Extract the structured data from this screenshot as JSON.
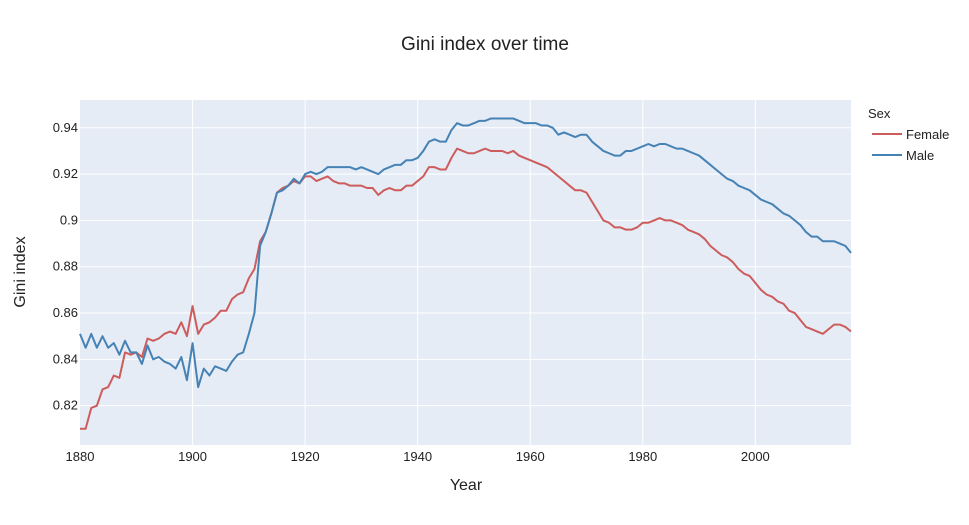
{
  "chart_data": {
    "type": "line",
    "title": "Gini index over time",
    "xlabel": "Year",
    "ylabel": "Gini index",
    "xlim": [
      1880,
      2017
    ],
    "ylim": [
      0.803,
      0.952
    ],
    "x_ticks": [
      1880,
      1900,
      1920,
      1940,
      1960,
      1980,
      2000
    ],
    "y_ticks": [
      0.82,
      0.84,
      0.86,
      0.88,
      0.9,
      0.92,
      0.94
    ],
    "y_tick_labels": [
      "0.82",
      "0.84",
      "0.86",
      "0.88",
      "0.9",
      "0.92",
      "0.94"
    ],
    "grid": true,
    "legend": {
      "title": "Sex",
      "position": "right"
    },
    "series": [
      {
        "name": "Female",
        "color": "#cd5c5c",
        "points": [
          [
            1880,
            0.81
          ],
          [
            1881,
            0.81
          ],
          [
            1882,
            0.819
          ],
          [
            1883,
            0.82
          ],
          [
            1884,
            0.827
          ],
          [
            1885,
            0.828
          ],
          [
            1886,
            0.833
          ],
          [
            1887,
            0.832
          ],
          [
            1888,
            0.843
          ],
          [
            1889,
            0.842
          ],
          [
            1890,
            0.843
          ],
          [
            1891,
            0.841
          ],
          [
            1892,
            0.849
          ],
          [
            1893,
            0.848
          ],
          [
            1894,
            0.849
          ],
          [
            1895,
            0.851
          ],
          [
            1896,
            0.852
          ],
          [
            1897,
            0.851
          ],
          [
            1898,
            0.856
          ],
          [
            1899,
            0.85
          ],
          [
            1900,
            0.863
          ],
          [
            1901,
            0.851
          ],
          [
            1902,
            0.855
          ],
          [
            1903,
            0.856
          ],
          [
            1904,
            0.858
          ],
          [
            1905,
            0.861
          ],
          [
            1906,
            0.861
          ],
          [
            1907,
            0.866
          ],
          [
            1908,
            0.868
          ],
          [
            1909,
            0.869
          ],
          [
            1910,
            0.875
          ],
          [
            1911,
            0.879
          ],
          [
            1912,
            0.891
          ],
          [
            1913,
            0.895
          ],
          [
            1914,
            0.903
          ],
          [
            1915,
            0.912
          ],
          [
            1916,
            0.914
          ],
          [
            1917,
            0.915
          ],
          [
            1918,
            0.917
          ],
          [
            1919,
            0.916
          ],
          [
            1920,
            0.919
          ],
          [
            1921,
            0.919
          ],
          [
            1922,
            0.917
          ],
          [
            1923,
            0.918
          ],
          [
            1924,
            0.919
          ],
          [
            1925,
            0.917
          ],
          [
            1926,
            0.916
          ],
          [
            1927,
            0.916
          ],
          [
            1928,
            0.915
          ],
          [
            1929,
            0.915
          ],
          [
            1930,
            0.915
          ],
          [
            1931,
            0.914
          ],
          [
            1932,
            0.914
          ],
          [
            1933,
            0.911
          ],
          [
            1934,
            0.913
          ],
          [
            1935,
            0.914
          ],
          [
            1936,
            0.913
          ],
          [
            1937,
            0.913
          ],
          [
            1938,
            0.915
          ],
          [
            1939,
            0.915
          ],
          [
            1940,
            0.917
          ],
          [
            1941,
            0.919
          ],
          [
            1942,
            0.923
          ],
          [
            1943,
            0.923
          ],
          [
            1944,
            0.922
          ],
          [
            1945,
            0.922
          ],
          [
            1946,
            0.927
          ],
          [
            1947,
            0.931
          ],
          [
            1948,
            0.93
          ],
          [
            1949,
            0.929
          ],
          [
            1950,
            0.929
          ],
          [
            1951,
            0.93
          ],
          [
            1952,
            0.931
          ],
          [
            1953,
            0.93
          ],
          [
            1954,
            0.93
          ],
          [
            1955,
            0.93
          ],
          [
            1956,
            0.929
          ],
          [
            1957,
            0.93
          ],
          [
            1958,
            0.928
          ],
          [
            1959,
            0.927
          ],
          [
            1960,
            0.926
          ],
          [
            1961,
            0.925
          ],
          [
            1962,
            0.924
          ],
          [
            1963,
            0.923
          ],
          [
            1964,
            0.921
          ],
          [
            1965,
            0.919
          ],
          [
            1966,
            0.917
          ],
          [
            1967,
            0.915
          ],
          [
            1968,
            0.913
          ],
          [
            1969,
            0.913
          ],
          [
            1970,
            0.912
          ],
          [
            1971,
            0.908
          ],
          [
            1972,
            0.904
          ],
          [
            1973,
            0.9
          ],
          [
            1974,
            0.899
          ],
          [
            1975,
            0.897
          ],
          [
            1976,
            0.897
          ],
          [
            1977,
            0.896
          ],
          [
            1978,
            0.896
          ],
          [
            1979,
            0.897
          ],
          [
            1980,
            0.899
          ],
          [
            1981,
            0.899
          ],
          [
            1982,
            0.9
          ],
          [
            1983,
            0.901
          ],
          [
            1984,
            0.9
          ],
          [
            1985,
            0.9
          ],
          [
            1986,
            0.899
          ],
          [
            1987,
            0.898
          ],
          [
            1988,
            0.896
          ],
          [
            1989,
            0.895
          ],
          [
            1990,
            0.894
          ],
          [
            1991,
            0.892
          ],
          [
            1992,
            0.889
          ],
          [
            1993,
            0.887
          ],
          [
            1994,
            0.885
          ],
          [
            1995,
            0.884
          ],
          [
            1996,
            0.882
          ],
          [
            1997,
            0.879
          ],
          [
            1998,
            0.877
          ],
          [
            1999,
            0.876
          ],
          [
            2000,
            0.873
          ],
          [
            2001,
            0.87
          ],
          [
            2002,
            0.868
          ],
          [
            2003,
            0.867
          ],
          [
            2004,
            0.865
          ],
          [
            2005,
            0.864
          ],
          [
            2006,
            0.861
          ],
          [
            2007,
            0.86
          ],
          [
            2008,
            0.857
          ],
          [
            2009,
            0.854
          ],
          [
            2010,
            0.853
          ],
          [
            2011,
            0.852
          ],
          [
            2012,
            0.851
          ],
          [
            2013,
            0.853
          ],
          [
            2014,
            0.855
          ],
          [
            2015,
            0.855
          ],
          [
            2016,
            0.854
          ],
          [
            2017,
            0.852
          ]
        ]
      },
      {
        "name": "Male",
        "color": "#4682b4",
        "points": [
          [
            1880,
            0.851
          ],
          [
            1881,
            0.845
          ],
          [
            1882,
            0.851
          ],
          [
            1883,
            0.845
          ],
          [
            1884,
            0.85
          ],
          [
            1885,
            0.845
          ],
          [
            1886,
            0.847
          ],
          [
            1887,
            0.842
          ],
          [
            1888,
            0.848
          ],
          [
            1889,
            0.843
          ],
          [
            1890,
            0.843
          ],
          [
            1891,
            0.838
          ],
          [
            1892,
            0.846
          ],
          [
            1893,
            0.84
          ],
          [
            1894,
            0.841
          ],
          [
            1895,
            0.839
          ],
          [
            1896,
            0.838
          ],
          [
            1897,
            0.836
          ],
          [
            1898,
            0.841
          ],
          [
            1899,
            0.831
          ],
          [
            1900,
            0.847
          ],
          [
            1901,
            0.828
          ],
          [
            1902,
            0.836
          ],
          [
            1903,
            0.833
          ],
          [
            1904,
            0.837
          ],
          [
            1905,
            0.836
          ],
          [
            1906,
            0.835
          ],
          [
            1907,
            0.839
          ],
          [
            1908,
            0.842
          ],
          [
            1909,
            0.843
          ],
          [
            1910,
            0.851
          ],
          [
            1911,
            0.86
          ],
          [
            1912,
            0.889
          ],
          [
            1913,
            0.895
          ],
          [
            1914,
            0.903
          ],
          [
            1915,
            0.912
          ],
          [
            1916,
            0.913
          ],
          [
            1917,
            0.915
          ],
          [
            1918,
            0.918
          ],
          [
            1919,
            0.916
          ],
          [
            1920,
            0.92
          ],
          [
            1921,
            0.921
          ],
          [
            1922,
            0.92
          ],
          [
            1923,
            0.921
          ],
          [
            1924,
            0.923
          ],
          [
            1925,
            0.923
          ],
          [
            1926,
            0.923
          ],
          [
            1927,
            0.923
          ],
          [
            1928,
            0.923
          ],
          [
            1929,
            0.922
          ],
          [
            1930,
            0.923
          ],
          [
            1931,
            0.922
          ],
          [
            1932,
            0.921
          ],
          [
            1933,
            0.92
          ],
          [
            1934,
            0.922
          ],
          [
            1935,
            0.923
          ],
          [
            1936,
            0.924
          ],
          [
            1937,
            0.924
          ],
          [
            1938,
            0.926
          ],
          [
            1939,
            0.926
          ],
          [
            1940,
            0.927
          ],
          [
            1941,
            0.93
          ],
          [
            1942,
            0.934
          ],
          [
            1943,
            0.935
          ],
          [
            1944,
            0.934
          ],
          [
            1945,
            0.934
          ],
          [
            1946,
            0.939
          ],
          [
            1947,
            0.942
          ],
          [
            1948,
            0.941
          ],
          [
            1949,
            0.941
          ],
          [
            1950,
            0.942
          ],
          [
            1951,
            0.943
          ],
          [
            1952,
            0.943
          ],
          [
            1953,
            0.944
          ],
          [
            1954,
            0.944
          ],
          [
            1955,
            0.944
          ],
          [
            1956,
            0.944
          ],
          [
            1957,
            0.944
          ],
          [
            1958,
            0.943
          ],
          [
            1959,
            0.942
          ],
          [
            1960,
            0.942
          ],
          [
            1961,
            0.942
          ],
          [
            1962,
            0.941
          ],
          [
            1963,
            0.941
          ],
          [
            1964,
            0.94
          ],
          [
            1965,
            0.937
          ],
          [
            1966,
            0.938
          ],
          [
            1967,
            0.937
          ],
          [
            1968,
            0.936
          ],
          [
            1969,
            0.937
          ],
          [
            1970,
            0.937
          ],
          [
            1971,
            0.934
          ],
          [
            1972,
            0.932
          ],
          [
            1973,
            0.93
          ],
          [
            1974,
            0.929
          ],
          [
            1975,
            0.928
          ],
          [
            1976,
            0.928
          ],
          [
            1977,
            0.93
          ],
          [
            1978,
            0.93
          ],
          [
            1979,
            0.931
          ],
          [
            1980,
            0.932
          ],
          [
            1981,
            0.933
          ],
          [
            1982,
            0.932
          ],
          [
            1983,
            0.933
          ],
          [
            1984,
            0.933
          ],
          [
            1985,
            0.932
          ],
          [
            1986,
            0.931
          ],
          [
            1987,
            0.931
          ],
          [
            1988,
            0.93
          ],
          [
            1989,
            0.929
          ],
          [
            1990,
            0.928
          ],
          [
            1991,
            0.926
          ],
          [
            1992,
            0.924
          ],
          [
            1993,
            0.922
          ],
          [
            1994,
            0.92
          ],
          [
            1995,
            0.918
          ],
          [
            1996,
            0.917
          ],
          [
            1997,
            0.915
          ],
          [
            1998,
            0.914
          ],
          [
            1999,
            0.913
          ],
          [
            2000,
            0.911
          ],
          [
            2001,
            0.909
          ],
          [
            2002,
            0.908
          ],
          [
            2003,
            0.907
          ],
          [
            2004,
            0.905
          ],
          [
            2005,
            0.903
          ],
          [
            2006,
            0.902
          ],
          [
            2007,
            0.9
          ],
          [
            2008,
            0.898
          ],
          [
            2009,
            0.895
          ],
          [
            2010,
            0.893
          ],
          [
            2011,
            0.893
          ],
          [
            2012,
            0.891
          ],
          [
            2013,
            0.891
          ],
          [
            2014,
            0.891
          ],
          [
            2015,
            0.89
          ],
          [
            2016,
            0.889
          ],
          [
            2017,
            0.886
          ]
        ]
      }
    ]
  }
}
